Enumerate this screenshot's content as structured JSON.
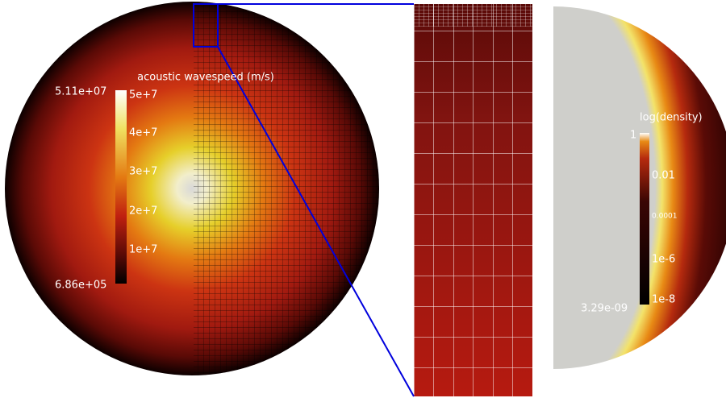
{
  "left_colorbar": {
    "title": "acoustic wavespeed (m/s)",
    "max_label": "5.11e+07",
    "min_label": "6.86e+05",
    "ticks": [
      "5e+7",
      "4e+7",
      "3e+7",
      "2e+7",
      "1e+7"
    ]
  },
  "right_colorbar": {
    "title": "log(density)",
    "min_label": "3.29e-09",
    "ticks": [
      "1",
      "0.01",
      "0.0001",
      "1e-6",
      "1e-8"
    ]
  }
}
